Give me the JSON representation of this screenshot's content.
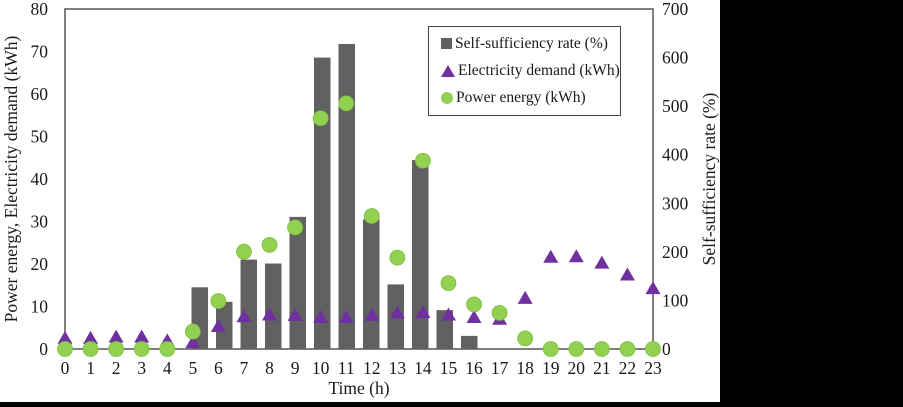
{
  "colors": {
    "background": "#000000",
    "chart_background": "#ffffff",
    "bar": "#616161",
    "triangle": "#7030A0",
    "circle": "#92D050",
    "axis": "#555555"
  },
  "chart_data": {
    "type": "combo",
    "x": [
      0,
      1,
      2,
      3,
      4,
      5,
      6,
      7,
      8,
      9,
      10,
      11,
      12,
      13,
      14,
      15,
      16,
      17,
      18,
      19,
      20,
      21,
      22,
      23
    ],
    "xlabel": "Time (h)",
    "ylabel_left": "Power energy, Electricity demand (kWh)",
    "ylabel_right": "Self-sufficiency rate (%)",
    "ylim_left": [
      0,
      80
    ],
    "ylim_right": [
      0,
      700
    ],
    "yticks_left": [
      0,
      10,
      20,
      30,
      40,
      50,
      60,
      70,
      80
    ],
    "yticks_right": [
      0,
      100,
      200,
      300,
      400,
      500,
      600,
      700
    ],
    "grid": false,
    "legend_position": "top-right-inside",
    "series": [
      {
        "name": "Self-sufficiency rate (%)",
        "type": "bar",
        "axis": "right",
        "values": [
          0,
          0,
          0,
          0,
          0,
          127,
          97,
          184,
          176,
          272,
          600,
          628,
          267,
          133,
          389,
          80,
          27,
          0,
          0,
          0,
          0,
          0,
          0,
          0
        ]
      },
      {
        "name": "Electricity demand (kWh)",
        "type": "scatter-triangle",
        "axis": "left",
        "values": [
          2.5,
          2.5,
          2.8,
          2.8,
          1.9,
          1.5,
          5.3,
          7.6,
          8.0,
          7.9,
          7.4,
          7.4,
          7.9,
          8.5,
          8.6,
          8.0,
          7.4,
          7.0,
          11.9,
          21.6,
          21.7,
          20.2,
          17.4,
          14.2
        ]
      },
      {
        "name": "Power energy (kWh)",
        "type": "scatter-circle",
        "axis": "left",
        "values": [
          0,
          0,
          0,
          0,
          0,
          4.1,
          11.3,
          22.9,
          24.5,
          28.6,
          54.3,
          57.8,
          31.3,
          21.5,
          44.3,
          15.5,
          10.5,
          8.5,
          2.5,
          0,
          0,
          0,
          0,
          0
        ]
      }
    ]
  }
}
